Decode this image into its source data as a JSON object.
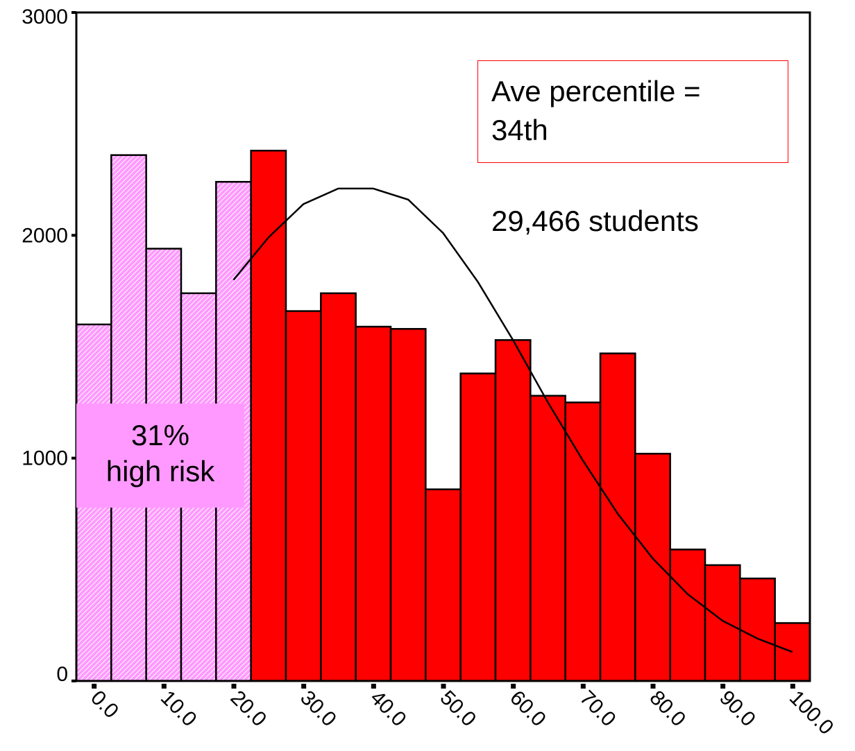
{
  "chart_data": {
    "type": "bar",
    "title": "",
    "xlabel": "",
    "ylabel": "",
    "ylim": [
      0,
      3000
    ],
    "xlim": [
      -2.5,
      102.5
    ],
    "y_ticks": [
      "0",
      "1000",
      "2000",
      "3000"
    ],
    "x_ticks": [
      "0.0",
      "10.0",
      "20.0",
      "30.0",
      "40.0",
      "50.0",
      "60.0",
      "70.0",
      "80.0",
      "90.0",
      "100.0"
    ],
    "bin_width": 5,
    "bin_centers": [
      0,
      5,
      10,
      15,
      20,
      25,
      30,
      35,
      40,
      45,
      50,
      55,
      60,
      65,
      70,
      75,
      80,
      85,
      90,
      95,
      100
    ],
    "values": [
      1600,
      2360,
      1940,
      1740,
      2240,
      2380,
      1660,
      1740,
      1590,
      1580,
      860,
      1380,
      1530,
      1280,
      1250,
      1470,
      1020,
      590,
      520,
      460,
      260
    ],
    "highlight_until_bin": 5,
    "colors": {
      "bar": "#ff0000",
      "highlight": "#ff99ff",
      "box_border": "#ff0000"
    },
    "normal_curve": {
      "x": [
        20,
        25,
        30,
        35,
        40,
        45,
        50,
        55,
        60,
        65,
        70,
        75,
        80,
        85,
        90,
        95,
        100
      ],
      "y": [
        1800,
        1990,
        2140,
        2210,
        2210,
        2160,
        2010,
        1790,
        1530,
        1250,
        990,
        750,
        550,
        390,
        270,
        190,
        130
      ]
    }
  },
  "annotations": {
    "ave_percentile": [
      "Ave percentile =",
      "34th"
    ],
    "students": "29,466 students",
    "high_risk": [
      "31%",
      "high risk"
    ]
  }
}
